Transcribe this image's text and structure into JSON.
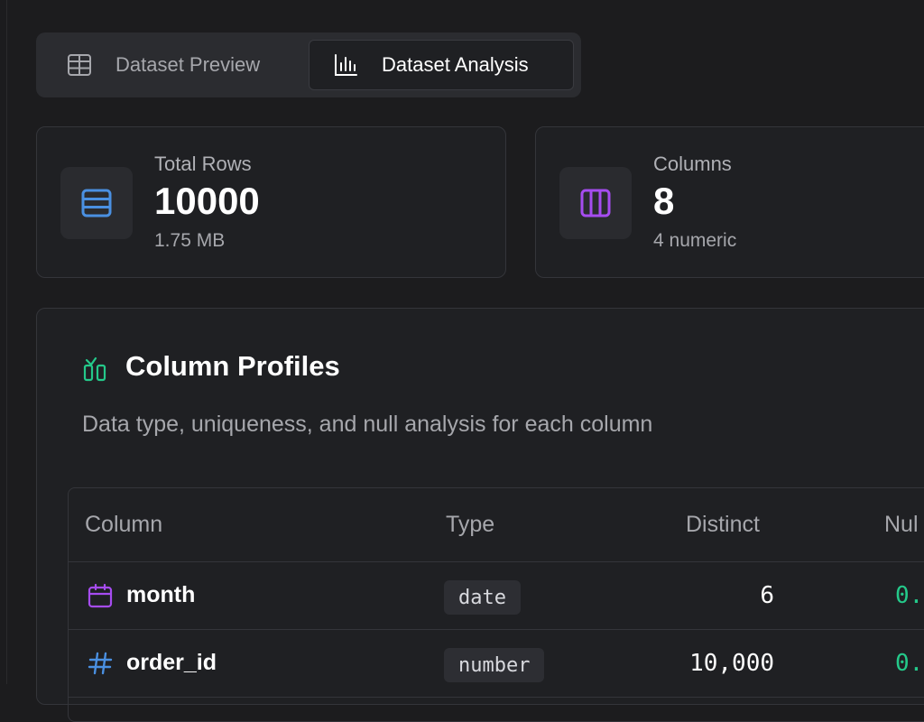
{
  "tabs": [
    {
      "label": "Dataset Preview",
      "icon": "table-icon",
      "active": false
    },
    {
      "label": "Dataset Analysis",
      "icon": "bar-chart-icon",
      "active": true
    }
  ],
  "stats": {
    "rows": {
      "label": "Total Rows",
      "value": "10000",
      "sub": "1.75 MB",
      "icon": "rows-icon",
      "color": "#4a90e2"
    },
    "columns": {
      "label": "Columns",
      "value": "8",
      "sub": "4 numeric",
      "icon": "columns-icon",
      "color": "#a64cf0"
    }
  },
  "profiles": {
    "title": "Column Profiles",
    "description": "Data type, uniqueness, and null analysis for each column",
    "icon_color": "#24c98a",
    "headers": {
      "column": "Column",
      "type": "Type",
      "distinct": "Distinct",
      "nulls": "Nul"
    },
    "rows": [
      {
        "name": "month",
        "type": "date",
        "distinct": "6",
        "nulls": "0.",
        "icon": "calendar-icon",
        "icon_color": "#a64cf0"
      },
      {
        "name": "order_id",
        "type": "number",
        "distinct": "10,000",
        "nulls": "0.",
        "icon": "hash-icon",
        "icon_color": "#4a90e2"
      }
    ]
  }
}
